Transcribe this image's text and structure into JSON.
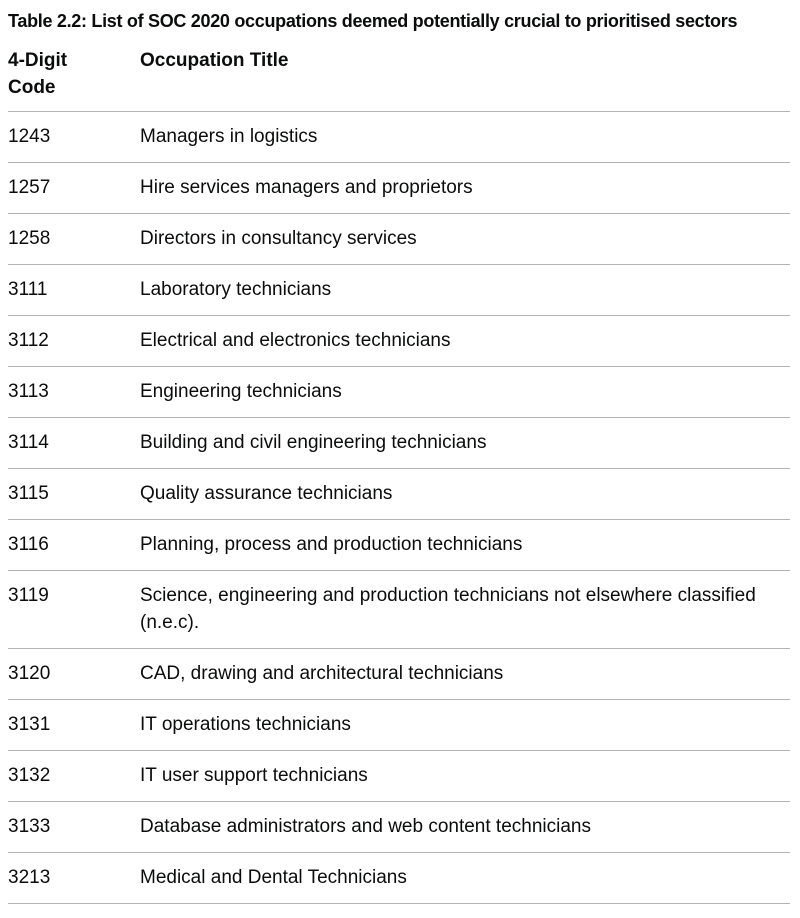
{
  "page": {
    "title": "Table 2.2: List of SOC 2020 occupations deemed potentially crucial to prioritised sectors"
  },
  "table": {
    "columns": [
      {
        "label": "4-Digit Code"
      },
      {
        "label": "Occupation Title"
      }
    ],
    "rows": [
      {
        "code": "1243",
        "title": "Managers in logistics"
      },
      {
        "code": "1257",
        "title": "Hire services managers and proprietors"
      },
      {
        "code": "1258",
        "title": "Directors in consultancy services"
      },
      {
        "code": "3111",
        "title": "Laboratory technicians"
      },
      {
        "code": "3112",
        "title": "Electrical and electronics technicians"
      },
      {
        "code": "3113",
        "title": "Engineering technicians"
      },
      {
        "code": "3114",
        "title": "Building and civil engineering technicians"
      },
      {
        "code": "3115",
        "title": "Quality assurance technicians"
      },
      {
        "code": "3116",
        "title": "Planning, process and production technicians"
      },
      {
        "code": "3119",
        "title": "Science, engineering and production technicians not elsewhere classified (n.e.c)."
      },
      {
        "code": "3120",
        "title": "CAD, drawing and architectural technicians"
      },
      {
        "code": "3131",
        "title": "IT operations technicians"
      },
      {
        "code": "3132",
        "title": "IT user support technicians"
      },
      {
        "code": "3133",
        "title": "Database administrators and web content technicians"
      },
      {
        "code": "3213",
        "title": "Medical and Dental Technicians"
      }
    ]
  },
  "colors": {
    "text": "#0b0c0c",
    "border": "#b1b4b6",
    "background": "#ffffff"
  }
}
